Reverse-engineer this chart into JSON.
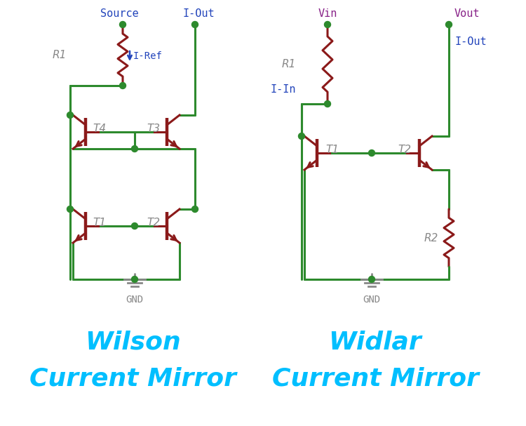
{
  "bg_color": "#ffffff",
  "wire_color": "#2d8a2d",
  "transistor_color": "#8b1a1a",
  "resistor_color": "#8b1a1a",
  "dot_color": "#2d8a2d",
  "label_color_gray": "#888888",
  "color_blue": "#2244bb",
  "color_purple": "#882288",
  "color_cyan": "#00bfff",
  "wilson_title1": "Wilson",
  "wilson_title2": "Current Mirror",
  "widlar_title1": "Widlar",
  "widlar_title2": "Current Mirror"
}
